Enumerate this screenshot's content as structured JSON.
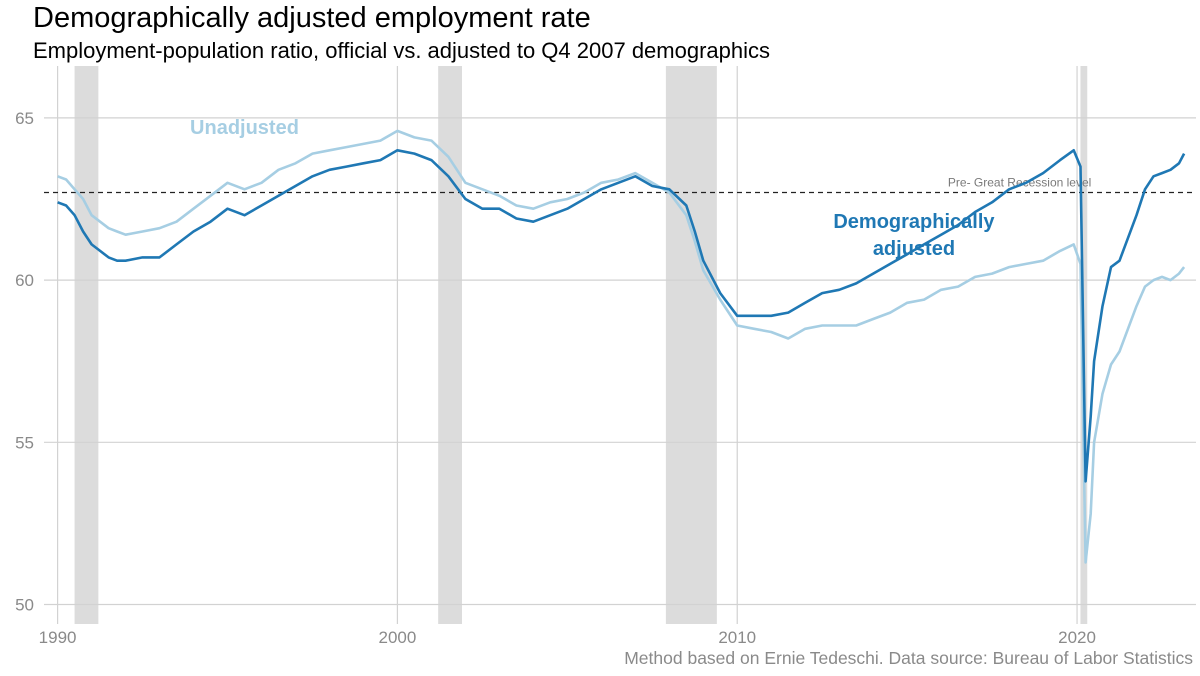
{
  "title": "Demographically adjusted employment rate",
  "subtitle": "Employment-population ratio, official vs. adjusted to Q4 2007 demographics",
  "caption": "Method based on Ernie Tedeschi. Data source: Bureau of Labor Statistics",
  "colors": {
    "unadjusted": "#a6cee3",
    "adjusted": "#1f78b4",
    "recession": "#dcdcdc",
    "grid": "#d2d2d2"
  },
  "chart_data": {
    "type": "line",
    "title": "Demographically adjusted employment rate",
    "subtitle": "Employment-population ratio, official vs. adjusted to Q4 2007 demographics",
    "xlim": [
      1989.6,
      2023.5
    ],
    "ylim": [
      49.4,
      66.6
    ],
    "x_ticks": [
      1990,
      2000,
      2010,
      2020
    ],
    "x_tick_labels": [
      "1990",
      "2000",
      "2010",
      "2020"
    ],
    "y_ticks": [
      50,
      55,
      60,
      65
    ],
    "y_tick_labels": [
      "50",
      "55",
      "60",
      "65"
    ],
    "grid": true,
    "reference_line": {
      "y": 62.7,
      "label": "Pre- Great Recession level",
      "style": "dashed"
    },
    "recessions": [
      [
        1990.5,
        1991.2
      ],
      [
        2001.2,
        2001.9
      ],
      [
        2007.9,
        2009.4
      ],
      [
        2020.1,
        2020.3
      ]
    ],
    "series": [
      {
        "name": "Unadjusted",
        "points": [
          [
            1990.0,
            63.2
          ],
          [
            1990.25,
            63.1
          ],
          [
            1990.5,
            62.8
          ],
          [
            1990.75,
            62.5
          ],
          [
            1991.0,
            62.0
          ],
          [
            1991.25,
            61.8
          ],
          [
            1991.5,
            61.6
          ],
          [
            1991.75,
            61.5
          ],
          [
            1992.0,
            61.4
          ],
          [
            1992.5,
            61.5
          ],
          [
            1993.0,
            61.6
          ],
          [
            1993.5,
            61.8
          ],
          [
            1994.0,
            62.2
          ],
          [
            1994.5,
            62.6
          ],
          [
            1995.0,
            63.0
          ],
          [
            1995.5,
            62.8
          ],
          [
            1996.0,
            63.0
          ],
          [
            1996.5,
            63.4
          ],
          [
            1997.0,
            63.6
          ],
          [
            1997.5,
            63.9
          ],
          [
            1998.0,
            64.0
          ],
          [
            1998.5,
            64.1
          ],
          [
            1999.0,
            64.2
          ],
          [
            1999.5,
            64.3
          ],
          [
            2000.0,
            64.6
          ],
          [
            2000.5,
            64.4
          ],
          [
            2001.0,
            64.3
          ],
          [
            2001.5,
            63.8
          ],
          [
            2002.0,
            63.0
          ],
          [
            2002.5,
            62.8
          ],
          [
            2003.0,
            62.6
          ],
          [
            2003.5,
            62.3
          ],
          [
            2004.0,
            62.2
          ],
          [
            2004.5,
            62.4
          ],
          [
            2005.0,
            62.5
          ],
          [
            2005.5,
            62.7
          ],
          [
            2006.0,
            63.0
          ],
          [
            2006.5,
            63.1
          ],
          [
            2007.0,
            63.3
          ],
          [
            2007.5,
            63.0
          ],
          [
            2008.0,
            62.7
          ],
          [
            2008.5,
            62.0
          ],
          [
            2008.75,
            61.2
          ],
          [
            2009.0,
            60.3
          ],
          [
            2009.5,
            59.4
          ],
          [
            2010.0,
            58.6
          ],
          [
            2010.5,
            58.5
          ],
          [
            2011.0,
            58.4
          ],
          [
            2011.5,
            58.2
          ],
          [
            2012.0,
            58.5
          ],
          [
            2012.5,
            58.6
          ],
          [
            2013.0,
            58.6
          ],
          [
            2013.5,
            58.6
          ],
          [
            2014.0,
            58.8
          ],
          [
            2014.5,
            59.0
          ],
          [
            2015.0,
            59.3
          ],
          [
            2015.5,
            59.4
          ],
          [
            2016.0,
            59.7
          ],
          [
            2016.5,
            59.8
          ],
          [
            2017.0,
            60.1
          ],
          [
            2017.5,
            60.2
          ],
          [
            2018.0,
            60.4
          ],
          [
            2018.5,
            60.5
          ],
          [
            2019.0,
            60.6
          ],
          [
            2019.5,
            60.9
          ],
          [
            2019.9,
            61.1
          ],
          [
            2020.1,
            60.5
          ],
          [
            2020.25,
            51.3
          ],
          [
            2020.4,
            52.8
          ],
          [
            2020.5,
            55.0
          ],
          [
            2020.75,
            56.5
          ],
          [
            2021.0,
            57.4
          ],
          [
            2021.25,
            57.8
          ],
          [
            2021.5,
            58.5
          ],
          [
            2021.75,
            59.2
          ],
          [
            2022.0,
            59.8
          ],
          [
            2022.25,
            60.0
          ],
          [
            2022.5,
            60.1
          ],
          [
            2022.75,
            60.0
          ],
          [
            2023.0,
            60.2
          ],
          [
            2023.15,
            60.4
          ]
        ]
      },
      {
        "name": "Demographically adjusted",
        "points": [
          [
            1990.0,
            62.4
          ],
          [
            1990.25,
            62.3
          ],
          [
            1990.5,
            62.0
          ],
          [
            1990.75,
            61.5
          ],
          [
            1991.0,
            61.1
          ],
          [
            1991.25,
            60.9
          ],
          [
            1991.5,
            60.7
          ],
          [
            1991.75,
            60.6
          ],
          [
            1992.0,
            60.6
          ],
          [
            1992.5,
            60.7
          ],
          [
            1993.0,
            60.7
          ],
          [
            1993.5,
            61.1
          ],
          [
            1994.0,
            61.5
          ],
          [
            1994.5,
            61.8
          ],
          [
            1995.0,
            62.2
          ],
          [
            1995.5,
            62.0
          ],
          [
            1996.0,
            62.3
          ],
          [
            1996.5,
            62.6
          ],
          [
            1997.0,
            62.9
          ],
          [
            1997.5,
            63.2
          ],
          [
            1998.0,
            63.4
          ],
          [
            1998.5,
            63.5
          ],
          [
            1999.0,
            63.6
          ],
          [
            1999.5,
            63.7
          ],
          [
            2000.0,
            64.0
          ],
          [
            2000.5,
            63.9
          ],
          [
            2001.0,
            63.7
          ],
          [
            2001.5,
            63.2
          ],
          [
            2002.0,
            62.5
          ],
          [
            2002.5,
            62.2
          ],
          [
            2003.0,
            62.2
          ],
          [
            2003.5,
            61.9
          ],
          [
            2004.0,
            61.8
          ],
          [
            2004.5,
            62.0
          ],
          [
            2005.0,
            62.2
          ],
          [
            2005.5,
            62.5
          ],
          [
            2006.0,
            62.8
          ],
          [
            2006.5,
            63.0
          ],
          [
            2007.0,
            63.2
          ],
          [
            2007.5,
            62.9
          ],
          [
            2008.0,
            62.8
          ],
          [
            2008.5,
            62.3
          ],
          [
            2008.75,
            61.5
          ],
          [
            2009.0,
            60.6
          ],
          [
            2009.5,
            59.6
          ],
          [
            2010.0,
            58.9
          ],
          [
            2010.5,
            58.9
          ],
          [
            2011.0,
            58.9
          ],
          [
            2011.5,
            59.0
          ],
          [
            2012.0,
            59.3
          ],
          [
            2012.5,
            59.6
          ],
          [
            2013.0,
            59.7
          ],
          [
            2013.5,
            59.9
          ],
          [
            2014.0,
            60.2
          ],
          [
            2014.5,
            60.5
          ],
          [
            2015.0,
            60.8
          ],
          [
            2015.5,
            61.1
          ],
          [
            2016.0,
            61.4
          ],
          [
            2016.5,
            61.7
          ],
          [
            2017.0,
            62.1
          ],
          [
            2017.5,
            62.4
          ],
          [
            2018.0,
            62.8
          ],
          [
            2018.5,
            63.0
          ],
          [
            2019.0,
            63.3
          ],
          [
            2019.5,
            63.7
          ],
          [
            2019.9,
            64.0
          ],
          [
            2020.1,
            63.5
          ],
          [
            2020.25,
            53.8
          ],
          [
            2020.4,
            55.8
          ],
          [
            2020.5,
            57.5
          ],
          [
            2020.75,
            59.2
          ],
          [
            2021.0,
            60.4
          ],
          [
            2021.25,
            60.6
          ],
          [
            2021.5,
            61.3
          ],
          [
            2021.75,
            62.0
          ],
          [
            2022.0,
            62.8
          ],
          [
            2022.25,
            63.2
          ],
          [
            2022.5,
            63.3
          ],
          [
            2022.75,
            63.4
          ],
          [
            2023.0,
            63.6
          ],
          [
            2023.15,
            63.9
          ]
        ]
      }
    ],
    "series_labels": [
      {
        "series": "Unadjusted",
        "lines": [
          "Unadjusted"
        ],
        "x": 1995.5,
        "y": 64.5
      },
      {
        "series": "Demographically adjusted",
        "lines": [
          "Demographically",
          "adjusted"
        ],
        "x": 2015.2,
        "y": 61.6
      }
    ]
  }
}
